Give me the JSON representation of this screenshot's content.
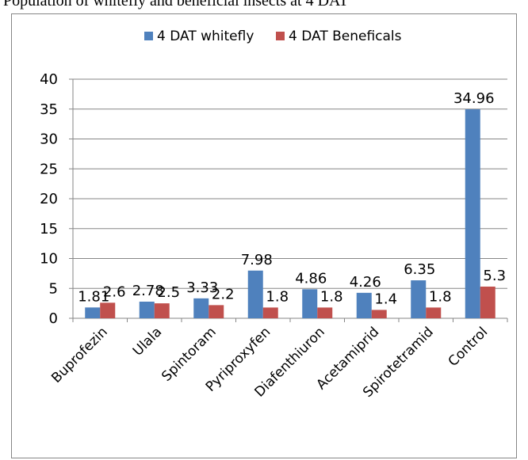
{
  "caption": "Population of whitefly and beneficial insects at 4 DAT",
  "chart_data": {
    "type": "bar",
    "categories": [
      "Buprofezin",
      "Ulala",
      "Spintoram",
      "Pyriproxyfen",
      "Diafenthiuron",
      "Acetamiprid",
      "Spirotetramid",
      "Control"
    ],
    "series": [
      {
        "name": "4 DAT whitefly",
        "color": "#4f81bd",
        "values": [
          1.81,
          2.78,
          3.33,
          7.98,
          4.86,
          4.26,
          6.35,
          34.96
        ],
        "labels": [
          "1.81",
          "2.78",
          "3.33",
          "7.98",
          "4.86",
          "4.26",
          "6.35",
          "34.96"
        ]
      },
      {
        "name": "4 DAT Beneficals",
        "color": "#c0504d",
        "values": [
          2.6,
          2.5,
          2.2,
          1.8,
          1.8,
          1.4,
          1.8,
          5.3
        ],
        "labels": [
          "2.6",
          "2.5",
          "2.2",
          "1.8",
          "1.8",
          "1.4",
          "1.8",
          "5.3"
        ]
      }
    ],
    "yticks": [
      "0",
      "5",
      "10",
      "15",
      "20",
      "25",
      "30",
      "35",
      "40"
    ],
    "ylim": [
      0,
      40
    ],
    "grid": true,
    "legend": "top"
  }
}
